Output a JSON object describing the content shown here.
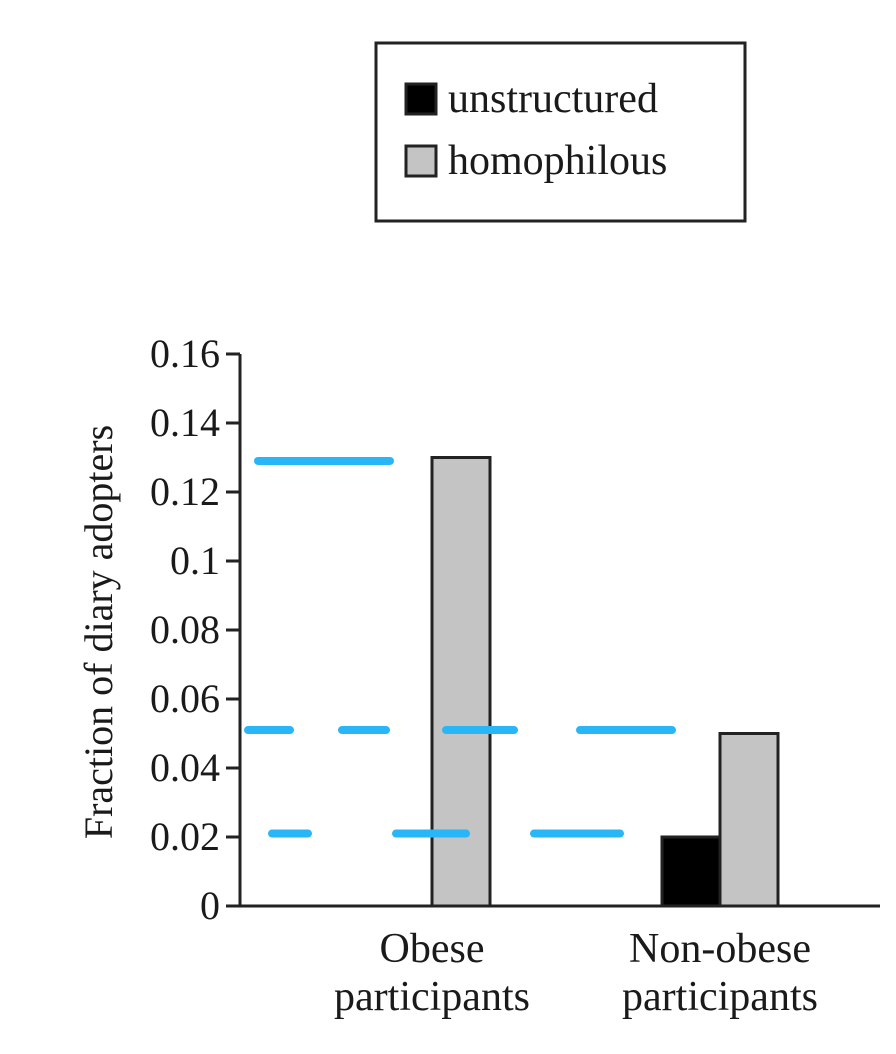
{
  "chart_data": {
    "type": "bar",
    "title": "",
    "xlabel": "",
    "ylabel": "Fraction of diary adopters",
    "ylim": [
      0,
      0.16
    ],
    "yticks": [
      0,
      0.02,
      0.04,
      0.06,
      0.08,
      0.1,
      0.12,
      0.14,
      0.16
    ],
    "ytick_labels": [
      "0",
      "0.02",
      "0.04",
      "0.06",
      "0.08",
      "0.1",
      "0.12",
      "0.14",
      "0.16"
    ],
    "categories": [
      [
        "Obese",
        "participants"
      ],
      [
        "Non-obese",
        "participants"
      ]
    ],
    "series": [
      {
        "name": "unstructured",
        "values": [
          0,
          0.02
        ],
        "color": "#000000"
      },
      {
        "name": "homophilous",
        "values": [
          0.13,
          0.05
        ],
        "color": "#c4c4c4"
      }
    ],
    "legend_position": "top-center",
    "grid": false,
    "annotations": {
      "type": "dashed-guide-lines",
      "color": "#29b6f6",
      "levels": [
        0.129,
        0.051,
        0.021
      ]
    }
  }
}
